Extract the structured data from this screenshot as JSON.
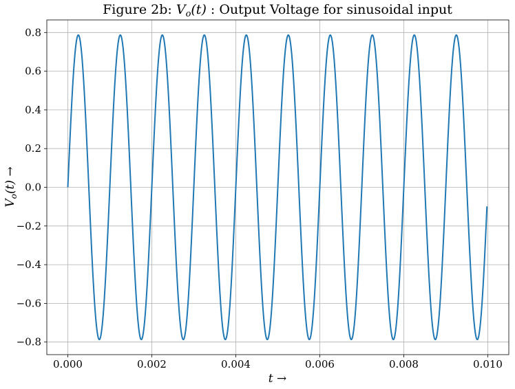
{
  "chart_data": {
    "type": "line",
    "title": "Figure 2b: V_o(t) : Output Voltage for sinusoidal input",
    "title_parts": {
      "prefix": "Figure 2b: ",
      "var": "V",
      "sub": "o",
      "arg": "(t)",
      "suffix": " : Output Voltage for sinusoidal input"
    },
    "xlabel": "t →",
    "xlabel_parts": {
      "var": "t",
      "arrow": " →"
    },
    "ylabel": "V_o(t) →",
    "ylabel_parts": {
      "var": "V",
      "sub": "o",
      "arg": "(t)",
      "arrow": " →"
    },
    "xlim": [
      -0.0005,
      0.0105
    ],
    "ylim": [
      -0.865,
      0.865
    ],
    "xticks": [
      0.0,
      0.002,
      0.004,
      0.006,
      0.008,
      0.01
    ],
    "xtick_labels": [
      "0.000",
      "0.002",
      "0.004",
      "0.006",
      "0.008",
      "0.010"
    ],
    "yticks": [
      -0.8,
      -0.6,
      -0.4,
      -0.2,
      0.0,
      0.2,
      0.4,
      0.6,
      0.8
    ],
    "ytick_labels": [
      "−0.8",
      "−0.6",
      "−0.4",
      "−0.2",
      "0.0",
      "0.2",
      "0.4",
      "0.6",
      "0.8"
    ],
    "grid": true,
    "series": [
      {
        "amplitude": 0.787,
        "frequency_hz": 1000,
        "x_start": 0.0,
        "x_end": 0.00998,
        "color": "#1f77b4"
      }
    ]
  }
}
